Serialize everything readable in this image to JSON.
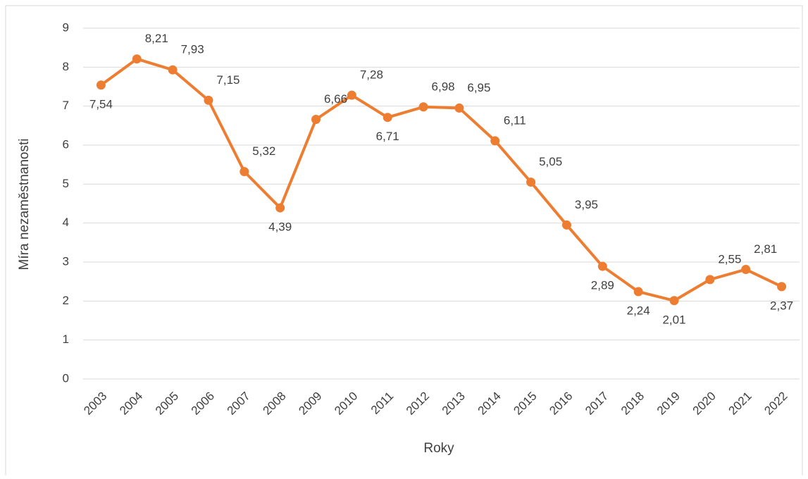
{
  "chart_data": {
    "type": "line",
    "x_label": "Roky",
    "y_label": "Míra nezaměstnanosti",
    "categories": [
      "2003",
      "2004",
      "2005",
      "2006",
      "2007",
      "2008",
      "2009",
      "2010",
      "2011",
      "2012",
      "2013",
      "2014",
      "2015",
      "2016",
      "2017",
      "2018",
      "2019",
      "2020",
      "2021",
      "2022"
    ],
    "series": [
      {
        "color": "#ed7d31",
        "values": [
          7.54,
          8.21,
          7.93,
          7.15,
          5.32,
          4.39,
          6.66,
          7.28,
          6.71,
          6.98,
          6.95,
          6.11,
          5.05,
          3.95,
          2.89,
          2.24,
          2.01,
          2.55,
          2.81,
          2.37
        ],
        "value_labels": [
          "7,54",
          "8,21",
          "7,93",
          "7,15",
          "5,32",
          "4,39",
          "6,66",
          "7,28",
          "6,71",
          "6,98",
          "6,95",
          "6,11",
          "5,05",
          "3,95",
          "2,89",
          "2,24",
          "2,01",
          "2,55",
          "2,81",
          "2,37"
        ]
      }
    ],
    "ylim": [
      0,
      9
    ],
    "yticks": [
      0,
      1,
      2,
      3,
      4,
      5,
      6,
      7,
      8,
      9
    ],
    "grid": true
  }
}
